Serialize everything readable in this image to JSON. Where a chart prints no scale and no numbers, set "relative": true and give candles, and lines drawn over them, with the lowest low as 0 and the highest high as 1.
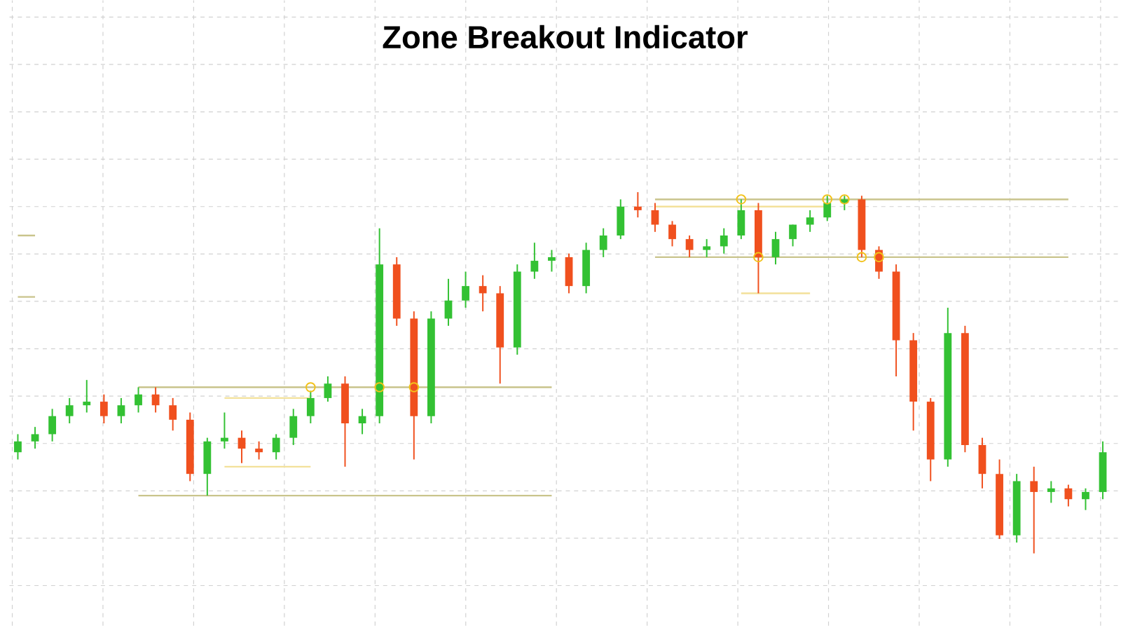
{
  "chart_data": {
    "type": "candlestick",
    "title": "Zone Breakout Indicator",
    "relative": true,
    "grid": true,
    "categories": [
      null,
      null,
      null,
      null,
      null,
      null,
      null,
      null,
      null,
      null,
      null,
      null,
      null,
      null,
      null,
      null,
      null,
      null,
      null,
      null,
      null,
      null,
      null,
      null,
      null,
      null,
      null,
      null,
      null,
      null,
      null,
      null,
      null,
      null,
      null,
      null,
      null,
      null,
      null,
      null,
      null,
      null,
      null,
      null,
      null,
      null,
      null,
      null,
      null,
      null,
      null,
      null,
      null,
      null,
      null,
      null,
      null,
      null,
      null,
      null,
      null,
      null,
      null,
      null
    ],
    "ohlc": [
      [
        0.28,
        0.33,
        0.26,
        0.31
      ],
      [
        0.31,
        0.35,
        0.29,
        0.33
      ],
      [
        0.33,
        0.4,
        0.31,
        0.38
      ],
      [
        0.38,
        0.43,
        0.36,
        0.41
      ],
      [
        0.41,
        0.48,
        0.39,
        0.42
      ],
      [
        0.42,
        0.44,
        0.36,
        0.38
      ],
      [
        0.38,
        0.43,
        0.36,
        0.41
      ],
      [
        0.41,
        0.46,
        0.39,
        0.44
      ],
      [
        0.44,
        0.46,
        0.39,
        0.41
      ],
      [
        0.41,
        0.43,
        0.34,
        0.37
      ],
      [
        0.37,
        0.39,
        0.2,
        0.22
      ],
      [
        0.22,
        0.32,
        0.16,
        0.31
      ],
      [
        0.31,
        0.39,
        0.29,
        0.32
      ],
      [
        0.32,
        0.34,
        0.25,
        0.29
      ],
      [
        0.29,
        0.31,
        0.26,
        0.28
      ],
      [
        0.28,
        0.33,
        0.26,
        0.32
      ],
      [
        0.32,
        0.4,
        0.3,
        0.38
      ],
      [
        0.38,
        0.45,
        0.36,
        0.43
      ],
      [
        0.43,
        0.49,
        0.42,
        0.47
      ],
      [
        0.47,
        0.49,
        0.24,
        0.36
      ],
      [
        0.36,
        0.4,
        0.33,
        0.38
      ],
      [
        0.38,
        0.9,
        0.36,
        0.8
      ],
      [
        0.8,
        0.82,
        0.63,
        0.65
      ],
      [
        0.65,
        0.67,
        0.26,
        0.38
      ],
      [
        0.38,
        0.67,
        0.36,
        0.65
      ],
      [
        0.65,
        0.76,
        0.63,
        0.7
      ],
      [
        0.7,
        0.78,
        0.68,
        0.74
      ],
      [
        0.74,
        0.77,
        0.67,
        0.72
      ],
      [
        0.72,
        0.74,
        0.47,
        0.57
      ],
      [
        0.57,
        0.8,
        0.55,
        0.78
      ],
      [
        0.78,
        0.86,
        0.76,
        0.81
      ],
      [
        0.81,
        0.84,
        0.78,
        0.82
      ],
      [
        0.82,
        0.83,
        0.72,
        0.74
      ],
      [
        0.74,
        0.86,
        0.72,
        0.84
      ],
      [
        0.84,
        0.9,
        0.82,
        0.88
      ],
      [
        0.88,
        0.98,
        0.87,
        0.96
      ],
      [
        0.96,
        1.0,
        0.93,
        0.95
      ],
      [
        0.95,
        0.97,
        0.89,
        0.91
      ],
      [
        0.91,
        0.92,
        0.85,
        0.87
      ],
      [
        0.87,
        0.88,
        0.82,
        0.84
      ],
      [
        0.84,
        0.87,
        0.82,
        0.85
      ],
      [
        0.85,
        0.9,
        0.83,
        0.88
      ],
      [
        0.88,
        0.98,
        0.87,
        0.95
      ],
      [
        0.95,
        0.97,
        0.72,
        0.82
      ],
      [
        0.82,
        0.89,
        0.8,
        0.87
      ],
      [
        0.87,
        0.91,
        0.85,
        0.91
      ],
      [
        0.91,
        0.95,
        0.89,
        0.93
      ],
      [
        0.93,
        0.99,
        0.92,
        0.97
      ],
      [
        0.97,
        0.99,
        0.95,
        0.98
      ],
      [
        0.98,
        0.99,
        0.82,
        0.84
      ],
      [
        0.84,
        0.85,
        0.76,
        0.78
      ],
      [
        0.78,
        0.8,
        0.49,
        0.59
      ],
      [
        0.59,
        0.61,
        0.34,
        0.42
      ],
      [
        0.42,
        0.43,
        0.2,
        0.26
      ],
      [
        0.26,
        0.68,
        0.24,
        0.61
      ],
      [
        0.61,
        0.63,
        0.28,
        0.3
      ],
      [
        0.3,
        0.32,
        0.18,
        0.22
      ],
      [
        0.22,
        0.26,
        0.04,
        0.05
      ],
      [
        0.05,
        0.22,
        0.03,
        0.2
      ],
      [
        0.2,
        0.24,
        0.0,
        0.17
      ],
      [
        0.17,
        0.2,
        0.14,
        0.18
      ],
      [
        0.18,
        0.19,
        0.13,
        0.15
      ],
      [
        0.15,
        0.18,
        0.12,
        0.17
      ],
      [
        0.17,
        0.31,
        0.15,
        0.28
      ]
    ],
    "colors": [
      "#33c133",
      "#33c133",
      "#33c133",
      "#33c133",
      "#33c133",
      "#f0501e",
      "#33c133",
      "#33c133",
      "#f0501e",
      "#f0501e",
      "#f0501e",
      "#33c133",
      "#33c133",
      "#f0501e",
      "#f0501e",
      "#33c133",
      "#33c133",
      "#33c133",
      "#33c133",
      "#f0501e",
      "#33c133",
      "#33c133",
      "#f0501e",
      "#f0501e",
      "#33c133",
      "#33c133",
      "#33c133",
      "#f0501e",
      "#f0501e",
      "#33c133",
      "#33c133",
      "#33c133",
      "#f0501e",
      "#33c133",
      "#33c133",
      "#33c133",
      "#f0501e",
      "#f0501e",
      "#f0501e",
      "#f0501e",
      "#33c133",
      "#33c133",
      "#33c133",
      "#f0501e",
      "#33c133",
      "#33c133",
      "#33c133",
      "#33c133",
      "#33c133",
      "#f0501e",
      "#f0501e",
      "#f0501e",
      "#f0501e",
      "#f0501e",
      "#33c133",
      "#f0501e",
      "#f0501e",
      "#f0501e",
      "#33c133",
      "#f0501e",
      "#33c133",
      "#f0501e",
      "#33c133",
      "#33c133"
    ],
    "series": [
      {
        "type": "line",
        "color": "#c9c48c",
        "values": [
          0.88,
          0.88,
          null,
          null,
          null,
          null,
          null,
          0.46,
          0.46,
          0.46,
          0.46,
          0.46,
          0.46,
          0.46,
          0.46,
          0.46,
          0.46,
          0.46,
          0.46,
          0.46,
          0.46,
          0.46,
          0.46,
          0.46,
          0.46,
          0.46,
          0.46,
          0.46,
          0.46,
          0.46,
          0.46,
          0.46,
          null,
          null,
          null,
          null,
          null,
          0.98,
          0.98,
          0.98,
          0.98,
          0.98,
          0.98,
          0.98,
          0.98,
          0.98,
          0.98,
          0.98,
          0.98,
          0.98,
          0.98,
          0.98,
          0.98,
          0.98,
          0.98,
          0.98,
          0.98,
          0.98,
          0.98,
          0.98,
          0.98,
          0.98,
          null,
          null
        ]
      },
      {
        "type": "line",
        "color": "#c9c48c",
        "values": [
          0.71,
          0.71,
          null,
          null,
          null,
          null,
          null,
          0.16,
          0.16,
          0.16,
          0.16,
          0.16,
          0.16,
          0.16,
          0.16,
          0.16,
          0.16,
          0.16,
          0.16,
          0.16,
          0.16,
          0.16,
          0.16,
          0.16,
          0.16,
          0.16,
          0.16,
          0.16,
          0.16,
          0.16,
          0.16,
          0.16,
          null,
          null,
          null,
          null,
          null,
          0.82,
          0.82,
          0.82,
          0.82,
          0.82,
          0.82,
          0.82,
          0.82,
          0.82,
          0.82,
          0.82,
          0.82,
          0.82,
          0.82,
          0.82,
          0.82,
          0.82,
          0.82,
          0.82,
          0.82,
          0.82,
          0.82,
          0.82,
          0.82,
          0.82,
          null,
          null
        ]
      },
      {
        "type": "line",
        "color": "#f3e19a",
        "values": [
          null,
          null,
          null,
          null,
          null,
          null,
          null,
          null,
          null,
          null,
          null,
          null,
          0.43,
          0.43,
          0.43,
          0.43,
          0.43,
          0.43,
          null,
          null,
          null,
          null,
          null,
          null,
          null,
          null,
          null,
          null,
          null,
          null,
          null,
          null,
          null,
          null,
          null,
          null,
          null,
          0.96,
          0.96,
          0.96,
          0.96,
          0.96,
          0.96,
          0.96,
          0.96,
          0.96,
          0.96,
          0.96,
          null,
          null,
          null,
          null,
          null,
          null,
          null,
          null,
          null,
          null,
          null,
          null,
          null,
          null,
          null,
          null
        ]
      },
      {
        "type": "line",
        "color": "#f3e19a",
        "values": [
          null,
          null,
          null,
          null,
          null,
          null,
          null,
          null,
          null,
          null,
          null,
          null,
          0.24,
          0.24,
          0.24,
          0.24,
          0.24,
          0.24,
          null,
          null,
          null,
          null,
          null,
          null,
          null,
          null,
          null,
          null,
          null,
          null,
          null,
          null,
          null,
          null,
          null,
          null,
          null,
          null,
          null,
          null,
          null,
          null,
          0.72,
          0.72,
          0.72,
          0.72,
          0.72,
          null,
          null,
          null,
          null,
          null,
          null,
          null,
          null,
          null,
          null,
          null,
          null,
          null,
          null,
          null,
          null,
          null
        ]
      },
      {
        "type": "scatter",
        "color": "#f2c21b",
        "marker": "circle",
        "values": [
          null,
          null,
          null,
          null,
          null,
          null,
          null,
          null,
          null,
          null,
          null,
          null,
          null,
          null,
          null,
          null,
          null,
          0.46,
          null,
          null,
          null,
          0.46,
          null,
          0.46,
          null,
          null,
          null,
          null,
          null,
          null,
          null,
          null,
          null,
          null,
          null,
          null,
          null,
          null,
          null,
          null,
          null,
          null,
          0.98,
          0.82,
          null,
          null,
          null,
          0.98,
          0.98,
          0.82,
          0.82,
          null,
          null,
          null,
          null,
          null,
          null,
          null,
          null,
          null,
          null,
          null,
          null,
          null
        ]
      }
    ]
  }
}
